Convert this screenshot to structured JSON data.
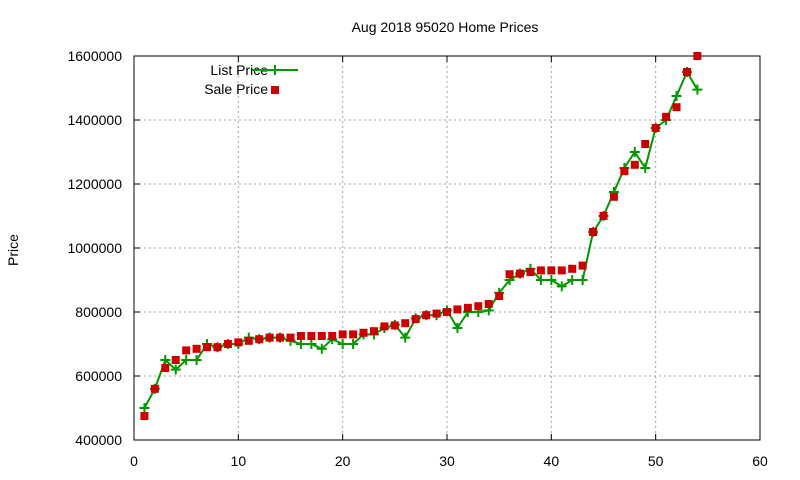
{
  "chart_data": {
    "type": "line",
    "title": "Aug 2018 95020 Home Prices",
    "xlabel": "",
    "ylabel": "Price",
    "xlim": [
      0,
      60
    ],
    "ylim": [
      400000,
      1600000
    ],
    "xticks": [
      "0",
      "10",
      "20",
      "30",
      "40",
      "50",
      "60"
    ],
    "yticks": [
      "400000",
      "600000",
      "800000",
      "1000000",
      "1200000",
      "1400000",
      "1600000"
    ],
    "grid": true,
    "legend_position": "top-left",
    "colors": {
      "list": "#009900",
      "sale": "#cc0000"
    },
    "x": [
      1,
      2,
      3,
      4,
      5,
      6,
      7,
      8,
      9,
      10,
      11,
      12,
      13,
      14,
      15,
      16,
      17,
      18,
      19,
      20,
      21,
      22,
      23,
      24,
      25,
      26,
      27,
      28,
      29,
      30,
      31,
      32,
      33,
      34,
      35,
      36,
      37,
      38,
      39,
      40,
      41,
      42,
      43,
      44,
      45,
      46,
      47,
      48,
      49,
      50,
      51,
      52,
      53,
      54
    ],
    "series": [
      {
        "name": "List Price",
        "style": "linespoints",
        "values": [
          500000,
          560000,
          650000,
          620000,
          650000,
          650000,
          700000,
          690000,
          700000,
          700000,
          720000,
          715000,
          720000,
          720000,
          710000,
          700000,
          700000,
          685000,
          715000,
          700000,
          700000,
          730000,
          730000,
          750000,
          760000,
          720000,
          780000,
          790000,
          790000,
          805000,
          750000,
          800000,
          800000,
          805000,
          860000,
          900000,
          920000,
          935000,
          900000,
          900000,
          880000,
          900000,
          900000,
          1050000,
          1100000,
          1175000,
          1250000,
          1300000,
          1250000,
          1375000,
          1400000,
          1475000,
          1550000,
          1495000
        ]
      },
      {
        "name": "Sale Price",
        "style": "points",
        "values": [
          475000,
          560000,
          625000,
          650000,
          680000,
          685000,
          690000,
          690000,
          700000,
          705000,
          710000,
          715000,
          720000,
          720000,
          720000,
          725000,
          725000,
          725000,
          725000,
          730000,
          730000,
          735000,
          740000,
          755000,
          758000,
          765000,
          778000,
          790000,
          795000,
          800000,
          808000,
          813000,
          818000,
          825000,
          850000,
          918000,
          920000,
          925000,
          930000,
          930000,
          930000,
          935000,
          945000,
          1050000,
          1100000,
          1160000,
          1240000,
          1260000,
          1325000,
          1375000,
          1410000,
          1440000,
          1550000,
          1600000
        ]
      }
    ]
  }
}
